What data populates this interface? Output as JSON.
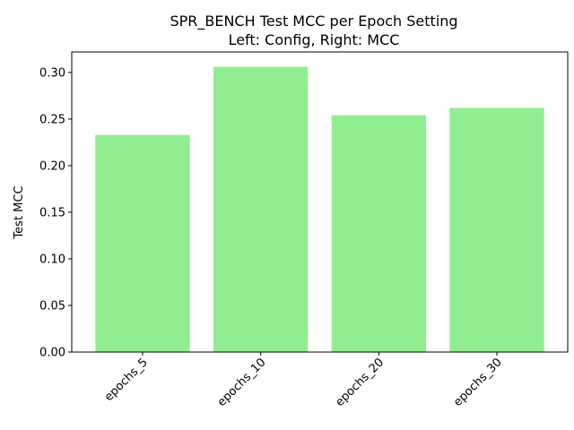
{
  "chart_data": {
    "type": "bar",
    "title": "SPR_BENCH Test MCC per Epoch Setting",
    "subtitle": "Left: Config, Right: MCC",
    "xlabel": "",
    "ylabel": "Test MCC",
    "categories": [
      "epochs_5",
      "epochs_10",
      "epochs_20",
      "epochs_30"
    ],
    "values": [
      0.233,
      0.306,
      0.254,
      0.262
    ],
    "ylim": [
      0,
      0.322
    ],
    "yticks": [
      0.0,
      0.05,
      0.1,
      0.15,
      0.2,
      0.25,
      0.3
    ],
    "ytick_labels": [
      "0.00",
      "0.05",
      "0.10",
      "0.15",
      "0.20",
      "0.25",
      "0.30"
    ],
    "bar_color": "#90EE90",
    "grid": false,
    "legend": "none"
  }
}
